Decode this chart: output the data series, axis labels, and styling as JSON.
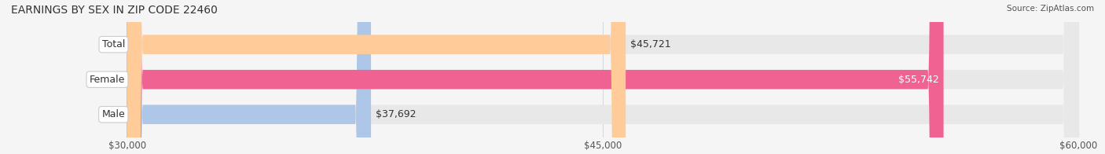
{
  "title": "EARNINGS BY SEX IN ZIP CODE 22460",
  "source": "Source: ZipAtlas.com",
  "categories": [
    "Male",
    "Female",
    "Total"
  ],
  "values": [
    37692,
    55742,
    45721
  ],
  "bar_colors": [
    "#aec6e8",
    "#f06292",
    "#ffcc99"
  ],
  "track_color": "#e8e8e8",
  "label_bg_color": "#ffffff",
  "xmin": 30000,
  "xmax": 60000,
  "xticks": [
    30000,
    45000,
    60000
  ],
  "xtick_labels": [
    "$30,000",
    "$45,000",
    "$60,000"
  ],
  "value_labels": [
    "$37,692",
    "$55,742",
    "$45,721"
  ],
  "bar_height": 0.55,
  "title_fontsize": 10,
  "tick_fontsize": 8.5,
  "label_fontsize": 9,
  "value_fontsize": 9,
  "background_color": "#f5f5f5"
}
